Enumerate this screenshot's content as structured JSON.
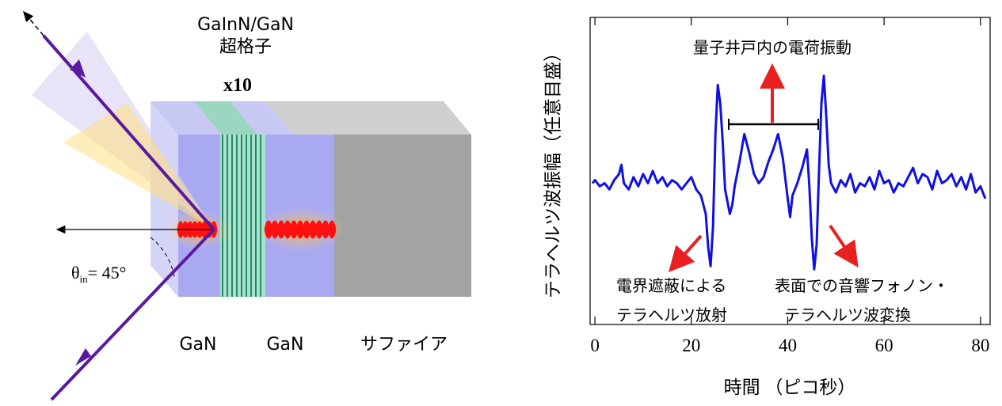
{
  "diagram": {
    "layer_label_1": "GaInN/GaN",
    "layer_label_2": "超格子",
    "repeat": "x10",
    "angle_theta": "θ",
    "angle_sub": "in",
    "angle_value": "= 45°",
    "bottom_labels": [
      "GaN",
      "GaN",
      "サファイア"
    ]
  },
  "chart_data": {
    "type": "line",
    "y_label": "テラヘルツ波振幅（任意目盛）",
    "x_label": "時間 （ピコ秒）",
    "annotations": [
      "量子井戸内の電荷振動",
      "電界遮蔽による",
      "テラヘルツ放射",
      "表面での音響フォノン・",
      "テラヘルツ波変換"
    ],
    "xlim": [
      -1,
      82
    ],
    "xticks": [
      0,
      20,
      40,
      60,
      80
    ],
    "ylim": [
      0,
      10
    ],
    "series": [
      {
        "color": "#1010e0",
        "x": [
          -0.5,
          0,
          1,
          2,
          3,
          4,
          5,
          5.5,
          6,
          7,
          8,
          9,
          10,
          11,
          12,
          13,
          14,
          15,
          16,
          17,
          18,
          19,
          20,
          21,
          22,
          23,
          23.5,
          24,
          24.5,
          25,
          25.5,
          26,
          26.5,
          27,
          28,
          28.5,
          29,
          30,
          31,
          32,
          33,
          34,
          35,
          36,
          37,
          38,
          39,
          40,
          40.5,
          41,
          42,
          43,
          44,
          44.5,
          45,
          45.5,
          46,
          46.5,
          47,
          47.5,
          48,
          48.5,
          49,
          50,
          51,
          52,
          53,
          54,
          55,
          56,
          57,
          58,
          59,
          60,
          61,
          62,
          63,
          64,
          65,
          66,
          67,
          68,
          69,
          70,
          71,
          72,
          73,
          74,
          75,
          76,
          77,
          78,
          79,
          80,
          81
        ],
        "values": [
          4.6,
          4.7,
          4.5,
          4.6,
          4.4,
          4.7,
          4.9,
          5.2,
          4.6,
          4.4,
          4.8,
          4.5,
          4.9,
          4.6,
          5.0,
          4.6,
          4.8,
          4.5,
          4.7,
          4.6,
          4.4,
          4.6,
          4.8,
          4.4,
          4.2,
          3.6,
          2.5,
          1.9,
          3.2,
          6.2,
          7.8,
          7.2,
          6.0,
          4.4,
          3.6,
          3.9,
          4.5,
          5.3,
          6.2,
          5.6,
          4.9,
          4.6,
          4.8,
          5.3,
          5.7,
          6.2,
          5.4,
          4.1,
          3.5,
          4.2,
          4.6,
          5.1,
          5.7,
          4.5,
          2.8,
          1.8,
          2.6,
          5.0,
          7.2,
          8.1,
          6.8,
          5.2,
          4.6,
          4.3,
          4.7,
          4.5,
          4.9,
          4.3,
          4.6,
          4.5,
          4.8,
          4.4,
          5.0,
          4.6,
          4.7,
          4.3,
          4.6,
          4.5,
          4.8,
          5.1,
          4.6,
          4.9,
          4.8,
          4.4,
          5.0,
          4.6,
          4.7,
          4.9,
          4.5,
          4.8,
          4.4,
          4.9,
          4.3,
          4.5,
          4.1
        ]
      }
    ]
  }
}
